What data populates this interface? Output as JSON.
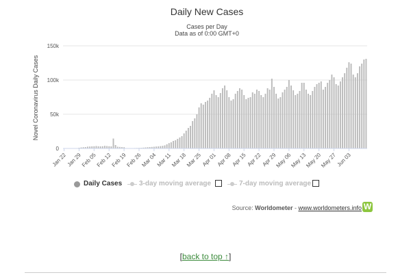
{
  "chart_data": {
    "type": "bar",
    "title": "Daily New Cases",
    "subtitle_line1": "Cases per Day",
    "subtitle_line2": "Data as of 0:00 GMT+0",
    "ylabel": "Novel Coronavirus Daily Cases",
    "xlabel": "",
    "ylim": [
      0,
      150000
    ],
    "yticks": [
      0,
      50000,
      100000,
      150000
    ],
    "ytick_labels": [
      "0",
      "50k",
      "100k",
      "150k"
    ],
    "grid": "horizontal",
    "series_color": "#bbbbbb",
    "start_date": "Jan 22",
    "xtick_labels": [
      "Jan 22",
      "Jan 29",
      "Feb 05",
      "Feb 12",
      "Feb 19",
      "Feb 26",
      "Mar 04",
      "Mar 11",
      "Mar 18",
      "Mar 25",
      "Apr 01",
      "Apr 08",
      "Apr 15",
      "Apr 22",
      "Apr 29",
      "May 06",
      "May 13",
      "May 20",
      "May 27",
      "Jun 03"
    ],
    "values": [
      0,
      0,
      0,
      0,
      0,
      0,
      0,
      1000,
      1500,
      1800,
      2000,
      2600,
      2800,
      3000,
      3200,
      3500,
      3100,
      3000,
      3200,
      3800,
      3500,
      3200,
      3000,
      14500,
      5000,
      2500,
      2200,
      2000,
      1800,
      500,
      300,
      500,
      400,
      600,
      700,
      800,
      900,
      1200,
      1500,
      1800,
      2000,
      2200,
      2500,
      2800,
      3000,
      3400,
      3800,
      4500,
      6000,
      7800,
      9000,
      11000,
      12000,
      14000,
      16000,
      18000,
      22000,
      26000,
      30000,
      33000,
      40000,
      44000,
      50000,
      60000,
      66000,
      64000,
      68000,
      70000,
      74000,
      80000,
      85000,
      78000,
      75000,
      81000,
      88000,
      92000,
      85000,
      75000,
      70000,
      72000,
      80000,
      84000,
      88000,
      86000,
      78000,
      72000,
      74000,
      75000,
      82000,
      80000,
      86000,
      84000,
      78000,
      75000,
      80000,
      88000,
      86000,
      102000,
      90000,
      80000,
      73000,
      75000,
      82000,
      86000,
      90000,
      100000,
      92000,
      85000,
      78000,
      80000,
      84000,
      96000,
      96000,
      86000,
      80000,
      78000,
      84000,
      90000,
      94000,
      96000,
      98000,
      86000,
      90000,
      96000,
      100000,
      108000,
      104000,
      94000,
      92000,
      98000,
      104000,
      110000,
      118000,
      126000,
      124000,
      108000,
      104000,
      110000,
      120000,
      124000,
      130000,
      131000
    ]
  },
  "legend": {
    "items": [
      {
        "label": "Daily Cases",
        "color": "#999999"
      },
      {
        "label": "3-day moving average",
        "color": "#bbbbbb"
      },
      {
        "label": "7-day moving average",
        "color": "#bbbbbb"
      }
    ]
  },
  "source": {
    "prefix": "Source: ",
    "name": "Worldometer",
    "separator": " - ",
    "link": "www.worldometers.info",
    "logo_letter": "W"
  },
  "footer": {
    "open": "[",
    "link": "back to top ↑",
    "close": "]"
  }
}
